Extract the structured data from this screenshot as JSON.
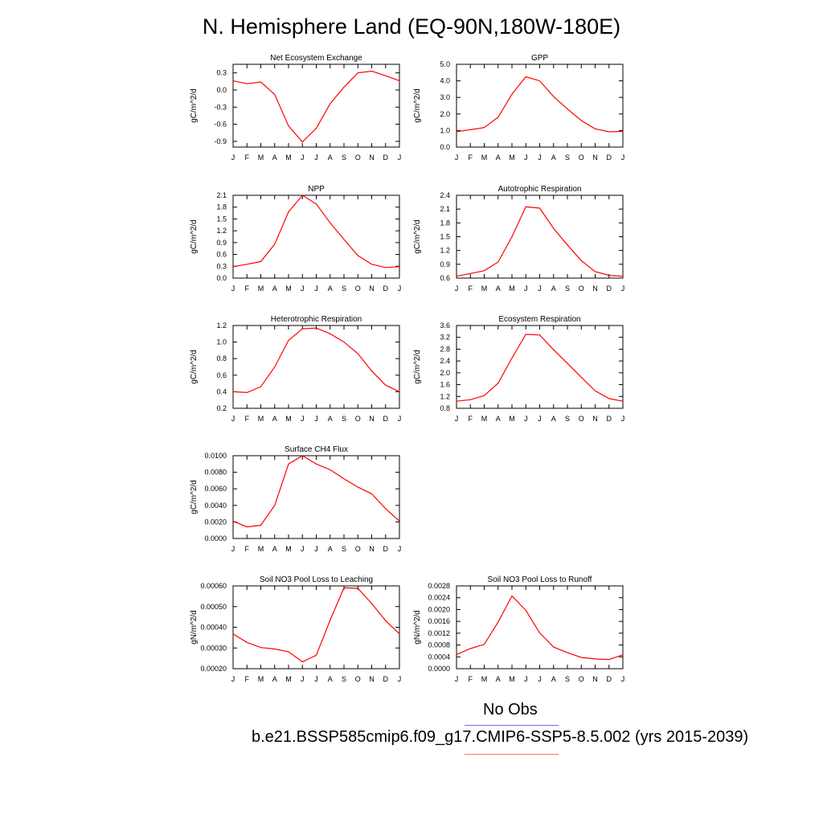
{
  "title": "N. Hemisphere Land (EQ-90N,180W-180E)",
  "legend": {
    "obs_label": "No Obs",
    "case_label": "b.e21.BSSP585cmip6.f09_g17.CMIP6-SSP5-8.5.002 (yrs 2015-2039)",
    "obs_color": "#6b6bff",
    "case_color": "#ff0000"
  },
  "chart_data": [
    {
      "type": "line",
      "title": "Net Ecosystem Exchange",
      "ylabel": "gC/m^2/d",
      "xlabel": "",
      "categories": [
        "J",
        "F",
        "M",
        "A",
        "M",
        "J",
        "J",
        "A",
        "S",
        "O",
        "N",
        "D",
        "J"
      ],
      "ylim": [
        -1.0,
        0.45
      ],
      "yticks": [
        0.3,
        0.0,
        -0.3,
        -0.6,
        -0.9
      ],
      "ytick_labels": [
        "0.3",
        "0.0",
        "-0.3",
        "-0.6",
        "-0.9"
      ],
      "series": [
        {
          "values": [
            0.16,
            0.11,
            0.14,
            -0.08,
            -0.63,
            -0.91,
            -0.67,
            -0.24,
            0.05,
            0.3,
            0.33,
            0.25,
            0.16
          ]
        }
      ]
    },
    {
      "type": "line",
      "title": "GPP",
      "ylabel": "gC/m^2/d",
      "xlabel": "",
      "categories": [
        "J",
        "F",
        "M",
        "A",
        "M",
        "J",
        "J",
        "A",
        "S",
        "O",
        "N",
        "D",
        "J"
      ],
      "ylim": [
        0.0,
        5.0
      ],
      "yticks": [
        0.0,
        1.0,
        2.0,
        3.0,
        4.0,
        5.0
      ],
      "ytick_labels": [
        "0.0",
        "1.0",
        "2.0",
        "3.0",
        "4.0",
        "5.0"
      ],
      "series": [
        {
          "values": [
            0.93,
            1.05,
            1.18,
            1.8,
            3.2,
            4.25,
            4.0,
            3.05,
            2.3,
            1.6,
            1.1,
            0.92,
            0.95
          ]
        }
      ]
    },
    {
      "type": "line",
      "title": "NPP",
      "ylabel": "gC/m^2/d",
      "xlabel": "",
      "categories": [
        "J",
        "F",
        "M",
        "A",
        "M",
        "J",
        "J",
        "A",
        "S",
        "O",
        "N",
        "D",
        "J"
      ],
      "ylim": [
        0.0,
        2.1
      ],
      "yticks": [
        0.0,
        0.3,
        0.6,
        0.9,
        1.2,
        1.5,
        1.8,
        2.1
      ],
      "ytick_labels": [
        "0.0",
        "0.3",
        "0.6",
        "0.9",
        "1.2",
        "1.5",
        "1.8",
        "2.1"
      ],
      "series": [
        {
          "values": [
            0.29,
            0.35,
            0.42,
            0.86,
            1.68,
            2.1,
            1.88,
            1.4,
            0.98,
            0.57,
            0.35,
            0.27,
            0.29
          ]
        }
      ]
    },
    {
      "type": "line",
      "title": "Autotrophic Respiration",
      "ylabel": "gC/m^2/d",
      "xlabel": "",
      "categories": [
        "J",
        "F",
        "M",
        "A",
        "M",
        "J",
        "J",
        "A",
        "S",
        "O",
        "N",
        "D",
        "J"
      ],
      "ylim": [
        0.6,
        2.4
      ],
      "yticks": [
        0.6,
        0.9,
        1.2,
        1.5,
        1.8,
        2.1,
        2.4
      ],
      "ytick_labels": [
        "0.6",
        "0.9",
        "1.2",
        "1.5",
        "1.8",
        "2.1",
        "2.4"
      ],
      "series": [
        {
          "values": [
            0.64,
            0.7,
            0.76,
            0.95,
            1.5,
            2.15,
            2.12,
            1.68,
            1.32,
            0.98,
            0.74,
            0.66,
            0.64
          ]
        }
      ]
    },
    {
      "type": "line",
      "title": "Heterotrophic Respiration",
      "ylabel": "gC/m^2/d",
      "xlabel": "",
      "categories": [
        "J",
        "F",
        "M",
        "A",
        "M",
        "J",
        "J",
        "A",
        "S",
        "O",
        "N",
        "D",
        "J"
      ],
      "ylim": [
        0.2,
        1.2
      ],
      "yticks": [
        0.2,
        0.4,
        0.6,
        0.8,
        1.0,
        1.2
      ],
      "ytick_labels": [
        "0.2",
        "0.4",
        "0.6",
        "0.8",
        "1.0",
        "1.2"
      ],
      "series": [
        {
          "values": [
            0.4,
            0.39,
            0.46,
            0.7,
            1.02,
            1.16,
            1.17,
            1.1,
            1.0,
            0.86,
            0.65,
            0.48,
            0.4
          ]
        }
      ]
    },
    {
      "type": "line",
      "title": "Ecosystem Respiration",
      "ylabel": "gC/m^2/d",
      "xlabel": "",
      "categories": [
        "J",
        "F",
        "M",
        "A",
        "M",
        "J",
        "J",
        "A",
        "S",
        "O",
        "N",
        "D",
        "J"
      ],
      "ylim": [
        0.8,
        3.6
      ],
      "yticks": [
        0.8,
        1.2,
        1.6,
        2.0,
        2.4,
        2.8,
        3.2,
        3.6
      ],
      "ytick_labels": [
        "0.8",
        "1.2",
        "1.6",
        "2.0",
        "2.4",
        "2.8",
        "3.2",
        "3.6"
      ],
      "series": [
        {
          "values": [
            1.04,
            1.09,
            1.23,
            1.65,
            2.5,
            3.3,
            3.28,
            2.78,
            2.32,
            1.85,
            1.39,
            1.13,
            1.04
          ]
        }
      ]
    },
    {
      "type": "line",
      "title": "Surface CH4 Flux",
      "ylabel": "gC/m^2/d",
      "xlabel": "",
      "categories": [
        "J",
        "F",
        "M",
        "A",
        "M",
        "J",
        "J",
        "A",
        "S",
        "O",
        "N",
        "D",
        "J"
      ],
      "ylim": [
        0.0,
        0.01
      ],
      "yticks": [
        0.0,
        0.002,
        0.004,
        0.006,
        0.008,
        0.01
      ],
      "ytick_labels": [
        "0.0000",
        "0.0020",
        "0.0040",
        "0.0060",
        "0.0080",
        "0.0100"
      ],
      "series": [
        {
          "values": [
            0.0021,
            0.0014,
            0.0016,
            0.004,
            0.009,
            0.01,
            0.009,
            0.0083,
            0.0072,
            0.0062,
            0.0054,
            0.0036,
            0.0021
          ]
        }
      ]
    },
    {
      "type": "line",
      "title": "Soil NO3 Pool Loss to Leaching",
      "ylabel": "gN/m^2/d",
      "xlabel": "",
      "categories": [
        "J",
        "F",
        "M",
        "A",
        "M",
        "J",
        "J",
        "A",
        "S",
        "O",
        "N",
        "D",
        "J"
      ],
      "ylim": [
        0.0002,
        0.0006
      ],
      "yticks": [
        0.0002,
        0.0003,
        0.0004,
        0.0005,
        0.0006
      ],
      "ytick_labels": [
        "0.00020",
        "0.00030",
        "0.00040",
        "0.00050",
        "0.00060"
      ],
      "series": [
        {
          "values": [
            0.000368,
            0.000327,
            0.000302,
            0.000295,
            0.000282,
            0.000233,
            0.000265,
            0.000435,
            0.000591,
            0.000588,
            0.000515,
            0.000432,
            0.000368
          ]
        }
      ]
    },
    {
      "type": "line",
      "title": "Soil NO3 Pool Loss to Runoff",
      "ylabel": "gN/m^2/d",
      "xlabel": "",
      "categories": [
        "J",
        "F",
        "M",
        "A",
        "M",
        "J",
        "J",
        "A",
        "S",
        "O",
        "N",
        "D",
        "J"
      ],
      "ylim": [
        0.0,
        0.0028
      ],
      "yticks": [
        0.0,
        0.0004,
        0.0008,
        0.0012,
        0.0016,
        0.002,
        0.0024,
        0.0028
      ],
      "ytick_labels": [
        "0.0000",
        "0.0004",
        "0.0008",
        "0.0012",
        "0.0016",
        "0.0020",
        "0.0024",
        "0.0028"
      ],
      "series": [
        {
          "values": [
            0.00048,
            0.00068,
            0.00082,
            0.00158,
            0.00246,
            0.00197,
            0.00121,
            0.00073,
            0.00054,
            0.00038,
            0.00033,
            0.00031,
            0.00047
          ]
        }
      ]
    }
  ]
}
